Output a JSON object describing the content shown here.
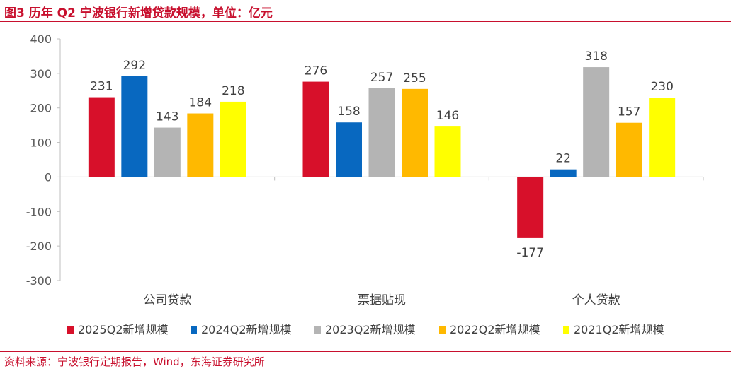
{
  "figure": {
    "title": "图3  历年 Q2 宁波银行新增贷款规模，单位：亿元",
    "source": "资料来源：宁波银行定期报告，Wind，东海证券研究所"
  },
  "chart_data": {
    "type": "bar",
    "categories": [
      "公司贷款",
      "票据贴现",
      "个人贷款"
    ],
    "series": [
      {
        "name": "2025Q2新增规模",
        "color": "#d7102a",
        "values": [
          231,
          276,
          -177
        ]
      },
      {
        "name": "2024Q2新增规模",
        "color": "#0868c0",
        "values": [
          292,
          158,
          22
        ]
      },
      {
        "name": "2023Q2新增规模",
        "color": "#b4b4b4",
        "values": [
          143,
          257,
          318
        ]
      },
      {
        "name": "2022Q2新增规模",
        "color": "#ffb900",
        "values": [
          184,
          255,
          157
        ]
      },
      {
        "name": "2021Q2新增规模",
        "color": "#ffff00",
        "values": [
          218,
          146,
          230
        ]
      }
    ],
    "yticks": [
      400,
      300,
      200,
      100,
      0,
      -100,
      -200,
      -300
    ],
    "ylim": [
      -300,
      400
    ],
    "grid": false,
    "data_labels": true,
    "legend": "bottom"
  }
}
